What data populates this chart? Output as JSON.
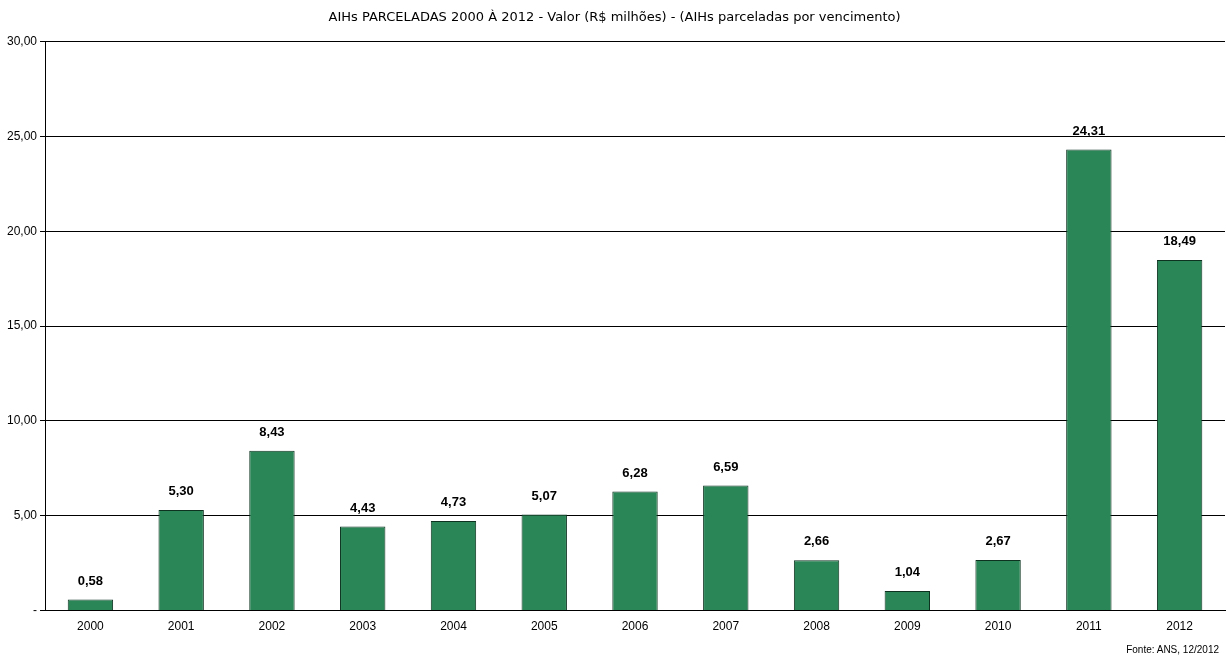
{
  "chart_data": {
    "type": "bar",
    "title": "AIHs PARCELADAS 2000 À 2012 - Valor (R$ milhões) - (AIHs parceladas por vencimento)",
    "categories": [
      "2000",
      "2001",
      "2002",
      "2003",
      "2004",
      "2005",
      "2006",
      "2007",
      "2008",
      "2009",
      "2010",
      "2011",
      "2012"
    ],
    "values": [
      0.58,
      5.3,
      8.43,
      4.43,
      4.73,
      5.07,
      6.28,
      6.59,
      2.66,
      1.04,
      2.67,
      24.31,
      18.49
    ],
    "value_labels": [
      "0,58",
      "5,30",
      "8,43",
      "4,43",
      "4,73",
      "5,07",
      "6,28",
      "6,59",
      "2,66",
      "1,04",
      "2,67",
      "24,31",
      "18,49"
    ],
    "color": "#2a8656",
    "ylim": [
      0,
      30
    ],
    "yticks": [
      {
        "value": 0,
        "label": "-"
      },
      {
        "value": 5,
        "label": "5,00"
      },
      {
        "value": 10,
        "label": "10,00"
      },
      {
        "value": 15,
        "label": "15,00"
      },
      {
        "value": 20,
        "label": "20,00"
      },
      {
        "value": 25,
        "label": "25,00"
      },
      {
        "value": 30,
        "label": "30,00"
      }
    ],
    "grid": "y",
    "annotations": [
      "Fonte: ANS, 12/2012"
    ]
  }
}
